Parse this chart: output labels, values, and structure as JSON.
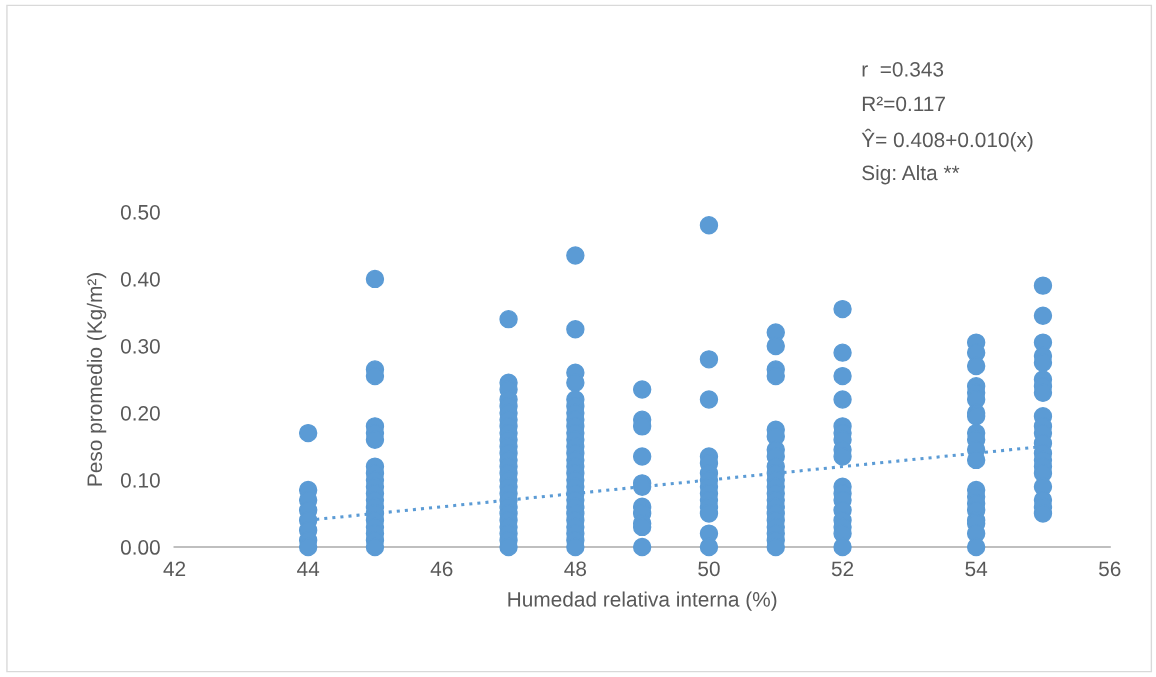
{
  "chart_data": {
    "type": "scatter",
    "xlabel": "Humedad relativa interna (%)",
    "ylabel": "Peso promedio (Kg/m²)",
    "xlim": [
      42,
      56
    ],
    "xticks": [
      42,
      44,
      46,
      48,
      50,
      52,
      54,
      56
    ],
    "ylim": [
      0,
      0.5
    ],
    "yticks": [
      {
        "value": 0,
        "label": "0.00"
      },
      {
        "value": 0.1,
        "label": "0.10"
      },
      {
        "value": 0.2,
        "label": "0.20"
      },
      {
        "value": 0.3,
        "label": "0.30"
      },
      {
        "value": 0.4,
        "label": "0.40"
      },
      {
        "value": 0.5,
        "label": "0.50"
      }
    ],
    "grid": false,
    "legend": false,
    "annotations": [
      "r  =0.343",
      "R²=0.117",
      "Ŷ= 0.408+0.010(x)",
      "Sig: Alta **"
    ],
    "series": [
      {
        "color": "#5b9bd5",
        "marker": "circle",
        "x": [
          44,
          44,
          44,
          44,
          44,
          44,
          44,
          44,
          45,
          45,
          45,
          45,
          45,
          45,
          45,
          45,
          45,
          45,
          45,
          45,
          45,
          45,
          45,
          45,
          45,
          45,
          45,
          47,
          47,
          47,
          47,
          47,
          47,
          47,
          47,
          47,
          47,
          47,
          47,
          47,
          47,
          47,
          47,
          47,
          47,
          47,
          47,
          47,
          47,
          47,
          47,
          47,
          47,
          48,
          48,
          48,
          48,
          48,
          48,
          48,
          48,
          48,
          48,
          48,
          48,
          48,
          48,
          48,
          48,
          48,
          48,
          48,
          48,
          48,
          48,
          48,
          48,
          48,
          48,
          48,
          49,
          49,
          49,
          49,
          49,
          49,
          49,
          49,
          49,
          49,
          49,
          50,
          50,
          50,
          50,
          50,
          50,
          50,
          50,
          50,
          50,
          50,
          50,
          50,
          50,
          51,
          51,
          51,
          51,
          51,
          51,
          51,
          51,
          51,
          51,
          51,
          51,
          51,
          51,
          51,
          51,
          51,
          51,
          51,
          51,
          51,
          52,
          52,
          52,
          52,
          52,
          52,
          52,
          52,
          52,
          52,
          52,
          52,
          52,
          52,
          52,
          52,
          52,
          54,
          54,
          54,
          54,
          54,
          54,
          54,
          54,
          54,
          54,
          54,
          54,
          54,
          54,
          54,
          54,
          54,
          54,
          54,
          54,
          55,
          55,
          55,
          55,
          55,
          55,
          55,
          55,
          55,
          55,
          55,
          55,
          55,
          55,
          55,
          55,
          55,
          55,
          55,
          55
        ],
        "values": [
          0.17,
          0.085,
          0.07,
          0.055,
          0.04,
          0.025,
          0.01,
          0,
          0.4,
          0.265,
          0.255,
          0.18,
          0.17,
          0.16,
          0.12,
          0.11,
          0.1,
          0.09,
          0.08,
          0.07,
          0.06,
          0.05,
          0.04,
          0.03,
          0.02,
          0.01,
          0,
          0.34,
          0.245,
          0.235,
          0.22,
          0.21,
          0.2,
          0.19,
          0.18,
          0.17,
          0.16,
          0.15,
          0.14,
          0.13,
          0.12,
          0.11,
          0.1,
          0.09,
          0.08,
          0.07,
          0.06,
          0.05,
          0.04,
          0.03,
          0.02,
          0.01,
          0,
          0.435,
          0.325,
          0.26,
          0.245,
          0.22,
          0.21,
          0.2,
          0.19,
          0.18,
          0.17,
          0.16,
          0.15,
          0.14,
          0.13,
          0.12,
          0.11,
          0.1,
          0.09,
          0.08,
          0.07,
          0.06,
          0.05,
          0.04,
          0.03,
          0.02,
          0.01,
          0,
          0.235,
          0.19,
          0.18,
          0.135,
          0.095,
          0.09,
          0.06,
          0.05,
          0.035,
          0.03,
          0,
          0.48,
          0.28,
          0.22,
          0.135,
          0.125,
          0.11,
          0.1,
          0.09,
          0.08,
          0.07,
          0.06,
          0.05,
          0.02,
          0,
          0.32,
          0.3,
          0.265,
          0.255,
          0.175,
          0.165,
          0.145,
          0.135,
          0.12,
          0.11,
          0.1,
          0.09,
          0.08,
          0.07,
          0.06,
          0.05,
          0.04,
          0.03,
          0.02,
          0.01,
          0,
          0.355,
          0.29,
          0.255,
          0.22,
          0.18,
          0.17,
          0.16,
          0.145,
          0.135,
          0.09,
          0.08,
          0.07,
          0.055,
          0.04,
          0.03,
          0.02,
          0,
          0.305,
          0.29,
          0.27,
          0.24,
          0.23,
          0.22,
          0.2,
          0.195,
          0.17,
          0.16,
          0.145,
          0.13,
          0.085,
          0.075,
          0.065,
          0.055,
          0.04,
          0.035,
          0.02,
          0,
          0.39,
          0.345,
          0.305,
          0.285,
          0.275,
          0.25,
          0.24,
          0.23,
          0.195,
          0.18,
          0.17,
          0.155,
          0.14,
          0.13,
          0.12,
          0.11,
          0.09,
          0.07,
          0.06,
          0.05
        ]
      },
      {
        "type": "line",
        "color": "#5b9bd5",
        "line_style": "dotted",
        "x": [
          44,
          55
        ],
        "values": [
          0.04,
          0.15
        ]
      }
    ]
  }
}
